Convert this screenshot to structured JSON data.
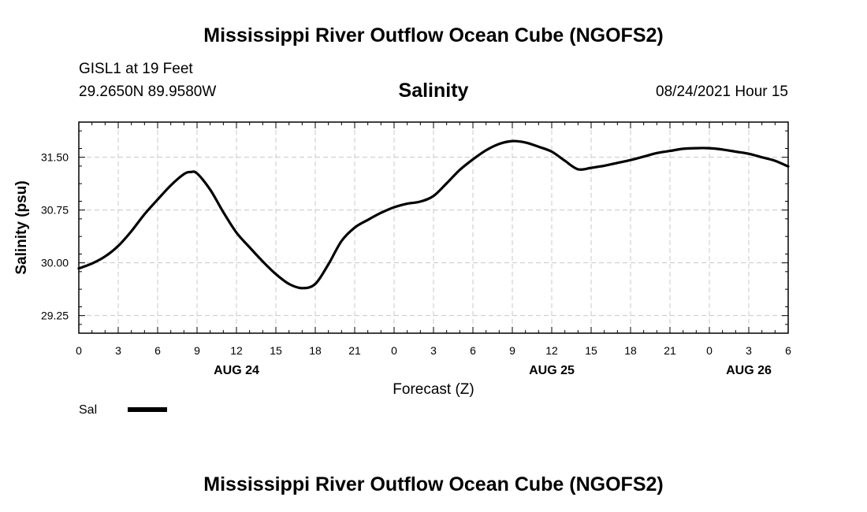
{
  "header": {
    "title": "Mississippi River Outflow Ocean Cube (NGOFS2)",
    "station": "GISL1 at 19 Feet",
    "coords": "29.2650N  89.9580W",
    "datetime": "08/24/2021 Hour 15"
  },
  "footer": {
    "title": "Mississippi River Outflow Ocean Cube (NGOFS2)"
  },
  "chart_data": {
    "type": "line",
    "title": "Salinity",
    "xlabel": "Forecast (Z)",
    "ylabel": "Salinity (psu)",
    "xlim": [
      0,
      54
    ],
    "ylim": [
      29.0,
      32.0
    ],
    "grid": true,
    "x_ticks": [
      0,
      3,
      6,
      9,
      12,
      15,
      18,
      21,
      24,
      27,
      30,
      33,
      36,
      39,
      42,
      45,
      48,
      51,
      54
    ],
    "x_tick_labels": [
      "0",
      "3",
      "6",
      "9",
      "12",
      "15",
      "18",
      "21",
      "0",
      "3",
      "6",
      "9",
      "12",
      "15",
      "18",
      "21",
      "0",
      "3",
      "6"
    ],
    "y_ticks": [
      29.25,
      30.0,
      30.75,
      31.5
    ],
    "y_tick_labels": [
      "29.25",
      "30.00",
      "30.75",
      "31.50"
    ],
    "date_labels": [
      {
        "x": 12,
        "label": "AUG 24"
      },
      {
        "x": 36,
        "label": "AUG 25"
      },
      {
        "x": 51,
        "label": "AUG 26"
      }
    ],
    "legend": {
      "position": "bottom-left",
      "entries": [
        {
          "label": "Sal",
          "color": "#000000"
        }
      ]
    },
    "series": [
      {
        "name": "Sal",
        "color": "#000000",
        "x": [
          0,
          1,
          2,
          3,
          4,
          5,
          6,
          7,
          8,
          8.5,
          9,
          10,
          11,
          12,
          13,
          14,
          15,
          16,
          17,
          18,
          19,
          20,
          21,
          22,
          23,
          24,
          25,
          26,
          27,
          28,
          29,
          30,
          31,
          32,
          33,
          34,
          35,
          36,
          37,
          38,
          39,
          40,
          41,
          42,
          43,
          44,
          45,
          46,
          47,
          48,
          49,
          50,
          51,
          52,
          53,
          54
        ],
        "values": [
          29.92,
          29.99,
          30.09,
          30.24,
          30.45,
          30.69,
          30.9,
          31.1,
          31.26,
          31.29,
          31.27,
          31.04,
          30.72,
          30.43,
          30.22,
          30.02,
          29.84,
          29.7,
          29.64,
          29.7,
          29.98,
          30.31,
          30.5,
          30.61,
          30.71,
          30.79,
          30.84,
          30.87,
          30.95,
          31.13,
          31.32,
          31.47,
          31.6,
          31.69,
          31.73,
          31.71,
          31.65,
          31.58,
          31.45,
          31.33,
          31.35,
          31.38,
          31.42,
          31.46,
          31.51,
          31.56,
          31.59,
          31.62,
          31.63,
          31.63,
          31.61,
          31.58,
          31.55,
          31.5,
          31.45,
          31.37
        ]
      }
    ]
  }
}
